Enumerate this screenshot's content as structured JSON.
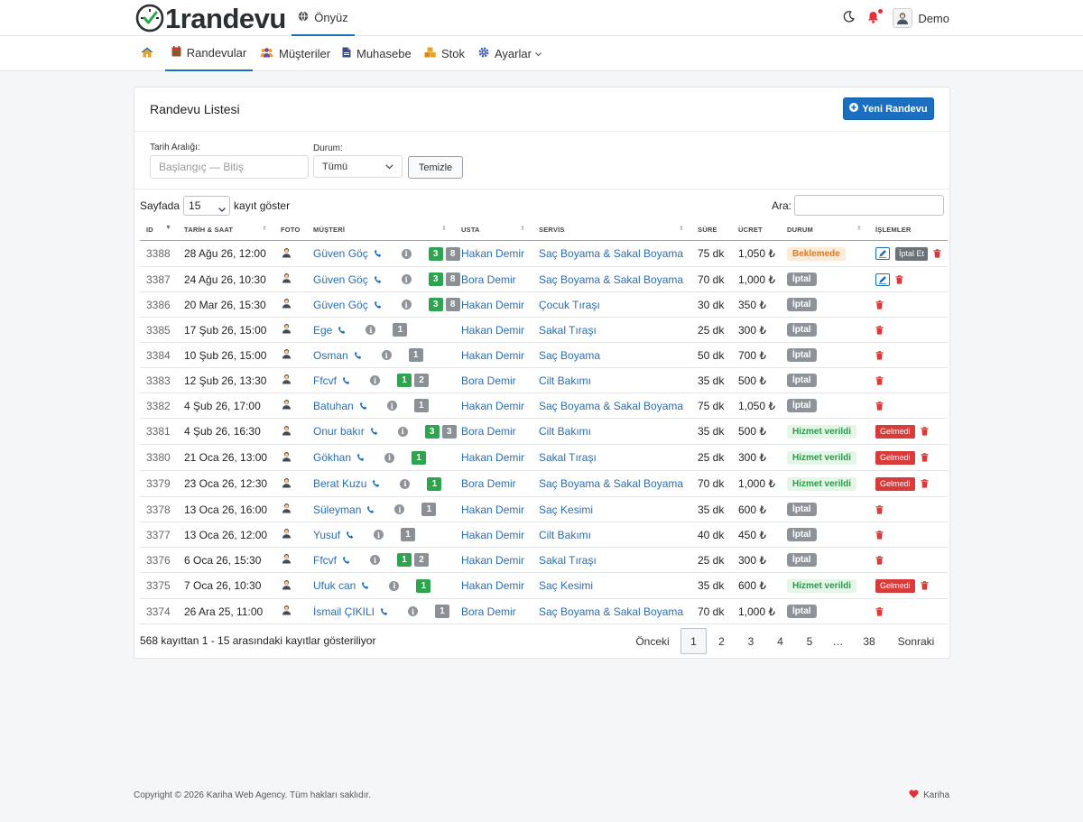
{
  "brand": {
    "name": "1randevu"
  },
  "topbar": {
    "home_tab": "Önyüz",
    "user_name": "Demo"
  },
  "nav": {
    "items": [
      "Randevular",
      "Müşteriler",
      "Muhasebe",
      "Stok",
      "Ayarlar"
    ]
  },
  "card": {
    "title": "Randevu Listesi",
    "new_button": "Yeni Randevu"
  },
  "filters": {
    "date_label": "Tarih Aralığı:",
    "date_placeholder": "Başlangıç — Bitiş",
    "status_label": "Durum:",
    "status_value": "Tümü",
    "clear_button": "Temizle"
  },
  "table_controls": {
    "length_prefix": "Sayfada",
    "length_value": "15",
    "length_suffix": "kayıt göster",
    "search_label": "Ara:"
  },
  "columns": [
    "ID",
    "TARİH & SAAT",
    "FOTO",
    "MÜŞTERİ",
    "USTA",
    "SERVİS",
    "SÜRE",
    "ÜCRET",
    "DURUM",
    "İŞLEMLER"
  ],
  "rows": [
    {
      "id": "3388",
      "date": "28 Ağu 26, 12:00",
      "customer": "Güven Göç",
      "c1": "3",
      "c2": "8",
      "master": "Hakan Demir",
      "service": "Saç Boyama & Sakal Boyama",
      "duration": "75 dk",
      "price": "1,050 ₺",
      "status": "Beklemede",
      "st": "wait",
      "actions": [
        "edit",
        "cancel",
        "trash"
      ]
    },
    {
      "id": "3387",
      "date": "24 Ağu 26, 10:30",
      "customer": "Güven Göç",
      "c1": "3",
      "c2": "8",
      "master": "Bora Demir",
      "service": "Saç Boyama & Sakal Boyama",
      "duration": "70 dk",
      "price": "1,000 ₺",
      "status": "İptal",
      "st": "cancel",
      "actions": [
        "edit",
        "trash"
      ]
    },
    {
      "id": "3386",
      "date": "20 Mar 26, 15:30",
      "customer": "Güven Göç",
      "c1": "3",
      "c2": "8",
      "master": "Hakan Demir",
      "service": "Çocuk Tıraşı",
      "duration": "30 dk",
      "price": "350 ₺",
      "status": "İptal",
      "st": "cancel",
      "actions": [
        "trash"
      ]
    },
    {
      "id": "3385",
      "date": "17 Şub 26, 15:00",
      "customer": "Ege",
      "c1": "",
      "c2": "1",
      "master": "Hakan Demir",
      "service": "Sakal Tıraşı",
      "duration": "25 dk",
      "price": "300 ₺",
      "status": "İptal",
      "st": "cancel",
      "actions": [
        "trash"
      ]
    },
    {
      "id": "3384",
      "date": "10 Şub 26, 15:00",
      "customer": "Osman",
      "c1": "",
      "c2": "1",
      "master": "Hakan Demir",
      "service": "Saç Boyama",
      "duration": "50 dk",
      "price": "700 ₺",
      "status": "İptal",
      "st": "cancel",
      "actions": [
        "trash"
      ]
    },
    {
      "id": "3383",
      "date": "12 Şub 26, 13:30",
      "customer": "Ffcvf",
      "c1": "1",
      "c2": "2",
      "master": "Bora Demir",
      "service": "Cilt Bakımı",
      "duration": "35 dk",
      "price": "500 ₺",
      "status": "İptal",
      "st": "cancel",
      "actions": [
        "trash"
      ]
    },
    {
      "id": "3382",
      "date": "4 Şub 26, 17:00",
      "customer": "Batuhan",
      "c1": "",
      "c2": "1",
      "master": "Hakan Demir",
      "service": "Saç Boyama & Sakal Boyama",
      "duration": "75 dk",
      "price": "1,050 ₺",
      "status": "İptal",
      "st": "cancel",
      "actions": [
        "trash"
      ]
    },
    {
      "id": "3381",
      "date": "4 Şub 26, 16:30",
      "customer": "Onur bakır",
      "c1": "3",
      "c2": "3",
      "master": "Bora Demir",
      "service": "Cilt Bakımı",
      "duration": "35 dk",
      "price": "500 ₺",
      "status": "Hizmet verildi",
      "st": "done",
      "actions": [
        "noshow",
        "trash"
      ]
    },
    {
      "id": "3380",
      "date": "21 Oca 26, 13:00",
      "customer": "Gökhan",
      "c1": "1",
      "c2": "",
      "master": "Hakan Demir",
      "service": "Sakal Tıraşı",
      "duration": "25 dk",
      "price": "300 ₺",
      "status": "Hizmet verildi",
      "st": "done",
      "actions": [
        "noshow",
        "trash"
      ]
    },
    {
      "id": "3379",
      "date": "23 Oca 26, 12:30",
      "customer": "Berat Kuzu",
      "c1": "1",
      "c2": "",
      "master": "Bora Demir",
      "service": "Saç Boyama & Sakal Boyama",
      "duration": "70 dk",
      "price": "1,000 ₺",
      "status": "Hizmet verildi",
      "st": "done",
      "actions": [
        "noshow",
        "trash"
      ]
    },
    {
      "id": "3378",
      "date": "13 Oca 26, 16:00",
      "customer": "Süleyman",
      "c1": "",
      "c2": "1",
      "master": "Hakan Demir",
      "service": "Saç Kesimi",
      "duration": "35 dk",
      "price": "600 ₺",
      "status": "İptal",
      "st": "cancel",
      "actions": [
        "trash"
      ]
    },
    {
      "id": "3377",
      "date": "13 Oca 26, 12:00",
      "customer": "Yusuf",
      "c1": "",
      "c2": "1",
      "master": "Hakan Demir",
      "service": "Cilt Bakımı",
      "duration": "40 dk",
      "price": "450 ₺",
      "status": "İptal",
      "st": "cancel",
      "actions": [
        "trash"
      ]
    },
    {
      "id": "3376",
      "date": "6 Oca 26, 15:30",
      "customer": "Ffcvf",
      "c1": "1",
      "c2": "2",
      "master": "Hakan Demir",
      "service": "Sakal Tıraşı",
      "duration": "25 dk",
      "price": "300 ₺",
      "status": "İptal",
      "st": "cancel",
      "actions": [
        "trash"
      ]
    },
    {
      "id": "3375",
      "date": "7 Oca 26, 10:30",
      "customer": "Ufuk can",
      "c1": "1",
      "c2": "",
      "master": "Hakan Demir",
      "service": "Saç Kesimi",
      "duration": "35 dk",
      "price": "600 ₺",
      "status": "Hizmet verildi",
      "st": "done",
      "actions": [
        "noshow",
        "trash"
      ]
    },
    {
      "id": "3374",
      "date": "26 Ara 25, 11:00",
      "customer": "İsmail ÇIKILI",
      "c1": "",
      "c2": "1",
      "master": "Bora Demir",
      "service": "Saç Boyama & Sakal Boyama",
      "duration": "70 dk",
      "price": "1,000 ₺",
      "status": "İptal",
      "st": "cancel",
      "actions": [
        "trash"
      ]
    }
  ],
  "action_labels": {
    "cancel": "İptal Et",
    "noshow": "Gelmedi"
  },
  "table_info": "568 kayıttan 1 - 15 arasındaki kayıtlar gösteriliyor",
  "pagination": {
    "prev": "Önceki",
    "pages": [
      "1",
      "2",
      "3",
      "4",
      "5",
      "…",
      "38"
    ],
    "current": "1",
    "next": "Sonraki"
  },
  "footer": {
    "copyright": "Copyright © 2026 Kariha Web Agency. Tüm hakları saklıdır.",
    "credit": "Kariha"
  },
  "colors": {
    "primary": "#1a6fc0",
    "success": "#2ea44f",
    "danger": "#d93a3a",
    "warning": "#e07a16",
    "link": "#2a6db3"
  }
}
